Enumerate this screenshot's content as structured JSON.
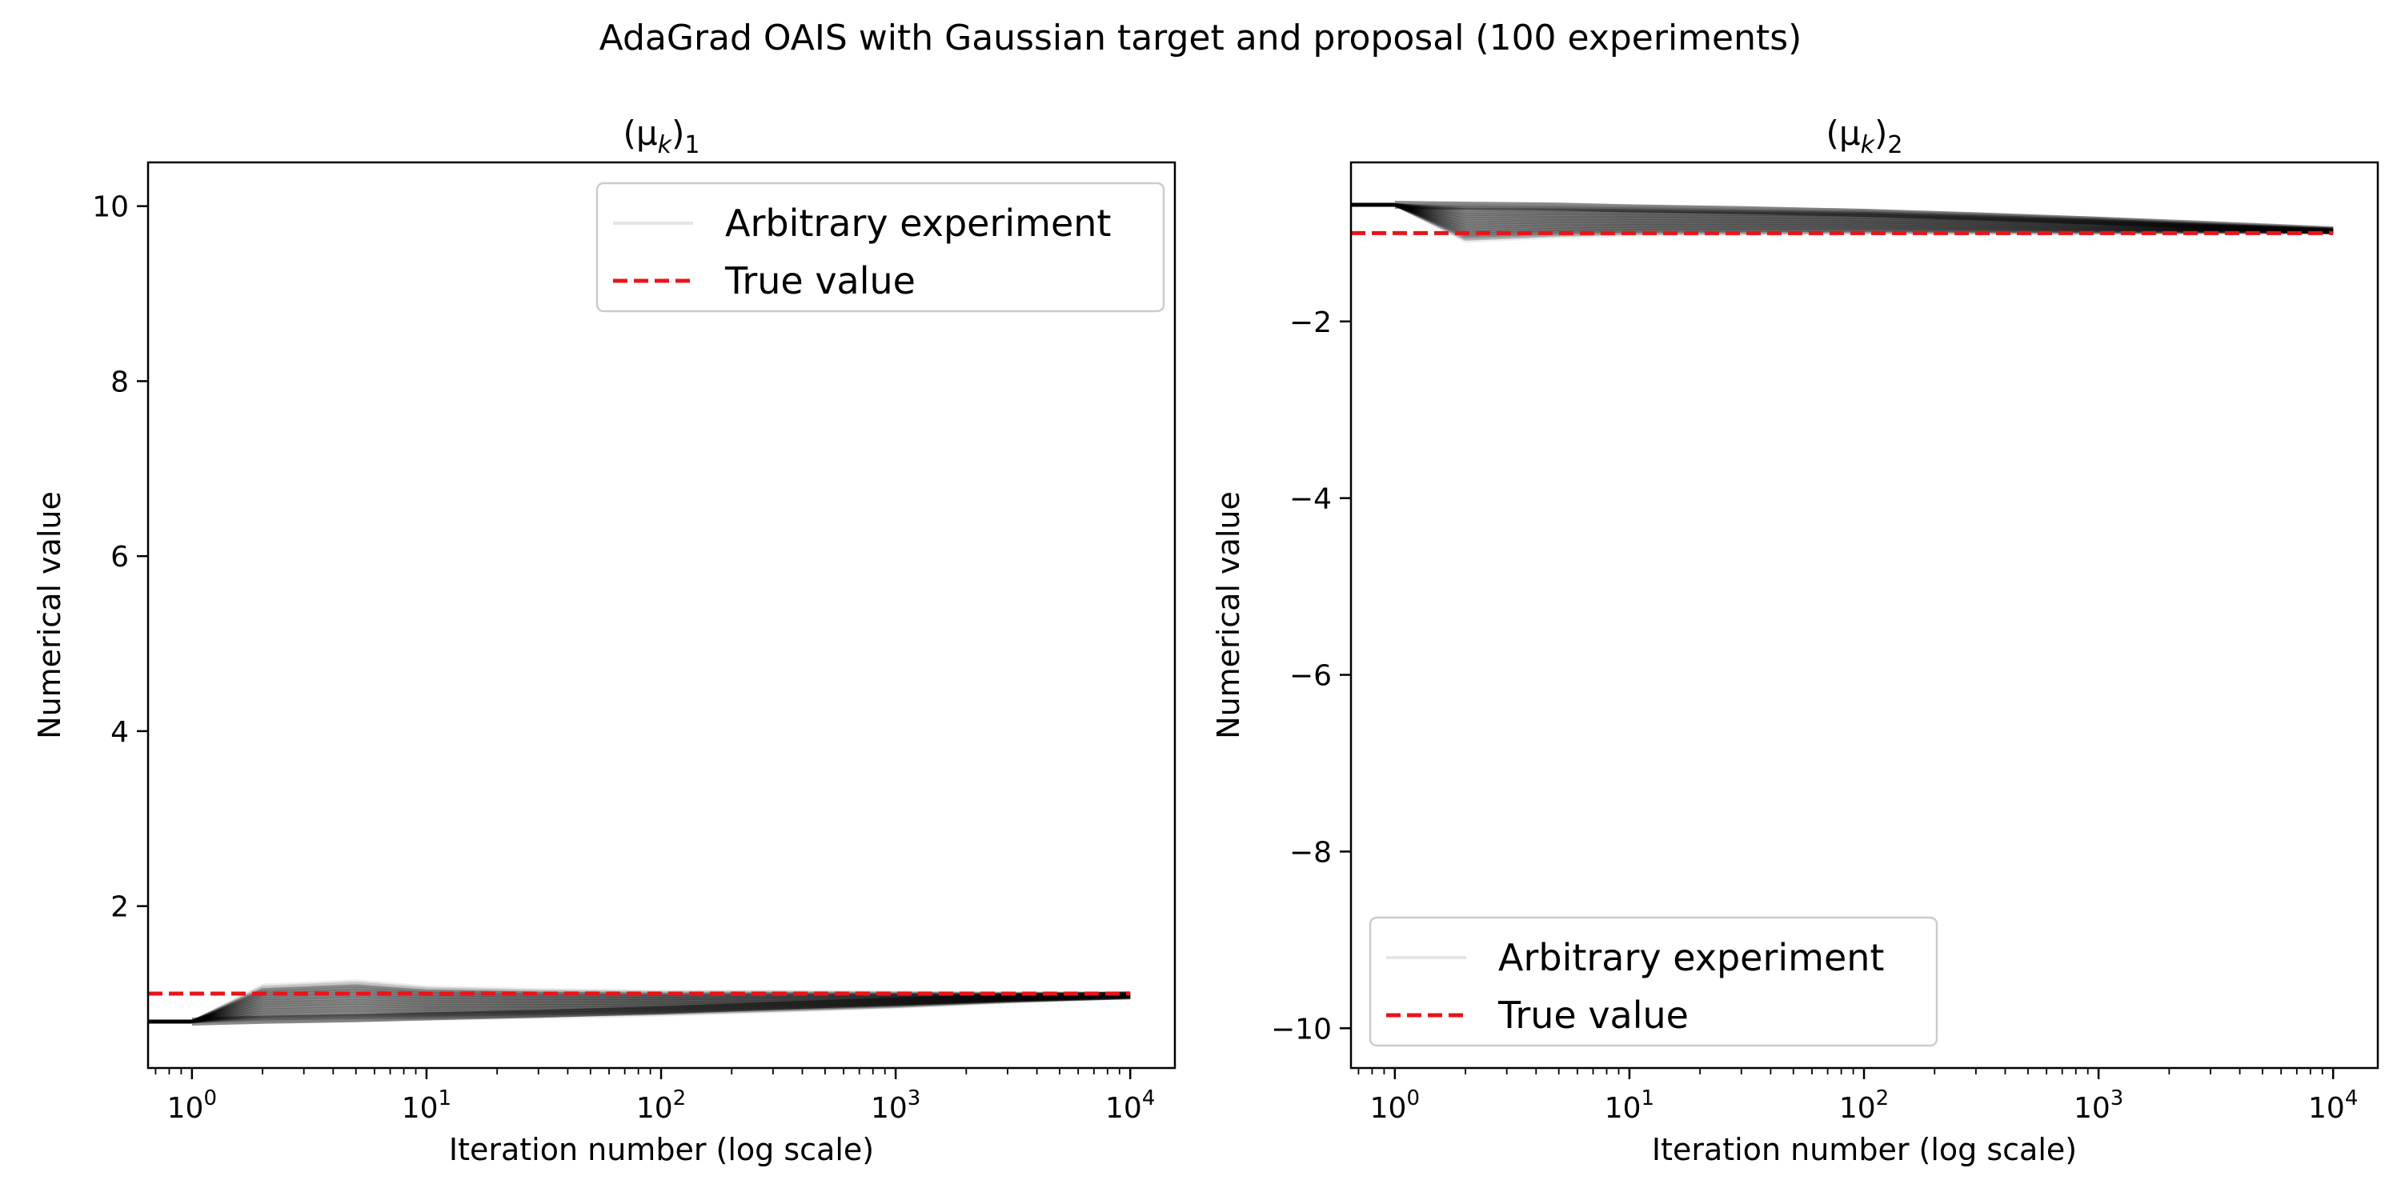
{
  "figure_title": "AdaGrad OAIS with Gaussian target and proposal (100 experiments)",
  "colors": {
    "experiment": "#000000",
    "true_value": "#e8141a",
    "frame": "#000000",
    "legend_border": "#cccccc"
  },
  "chart_data": [
    {
      "type": "line",
      "title": "(μk)1",
      "title_main": "(μ",
      "title_sub_k": "k",
      "title_close": ")",
      "title_sub_index": "1",
      "xlabel": "Iteration number (log scale)",
      "ylabel": "Numerical value",
      "xscale": "log",
      "xlim": [
        0.65,
        15500
      ],
      "ylim": [
        0.15,
        10.5
      ],
      "xticks": [
        1,
        10,
        100,
        1000,
        10000
      ],
      "xtick_labels": [
        {
          "base": "10",
          "exp": "0"
        },
        {
          "base": "10",
          "exp": "1"
        },
        {
          "base": "10",
          "exp": "2"
        },
        {
          "base": "10",
          "exp": "3"
        },
        {
          "base": "10",
          "exp": "4"
        }
      ],
      "yticks": [
        2,
        4,
        6,
        8,
        10
      ],
      "ytick_labels": [
        "2",
        "4",
        "6",
        "8",
        "10"
      ],
      "legend_loc": "upper right",
      "legend": [
        "Arbitrary experiment",
        "True value"
      ],
      "grid": false,
      "true_value": 1.0,
      "experiments": {
        "count": 100,
        "x": [
          1,
          2,
          5,
          10,
          30,
          100,
          300,
          1000,
          3000,
          10000
        ],
        "envelope_low": [
          0.68,
          0.68,
          0.69,
          0.7,
          0.72,
          0.75,
          0.79,
          0.84,
          0.9,
          0.95
        ],
        "envelope_high": [
          0.68,
          1.1,
          1.15,
          1.08,
          1.05,
          1.03,
          1.03,
          1.02,
          1.01,
          1.01
        ],
        "highlight": [
          0.68,
          0.7,
          0.72,
          0.74,
          0.77,
          0.81,
          0.86,
          0.91,
          0.95,
          0.98
        ]
      }
    },
    {
      "type": "line",
      "title": "(μk)2",
      "title_main": "(μ",
      "title_sub_k": "k",
      "title_close": ")",
      "title_sub_index": "2",
      "xlabel": "Iteration number (log scale)",
      "ylabel": "Numerical value",
      "xscale": "log",
      "xlim": [
        0.65,
        15500
      ],
      "ylim": [
        -10.45,
        -0.2
      ],
      "xticks": [
        1,
        10,
        100,
        1000,
        10000
      ],
      "xtick_labels": [
        {
          "base": "10",
          "exp": "0"
        },
        {
          "base": "10",
          "exp": "1"
        },
        {
          "base": "10",
          "exp": "2"
        },
        {
          "base": "10",
          "exp": "3"
        },
        {
          "base": "10",
          "exp": "4"
        }
      ],
      "yticks": [
        -10,
        -8,
        -6,
        -4,
        -2
      ],
      "ytick_labels": [
        "−10",
        "−8",
        "−6",
        "−4",
        "−2"
      ],
      "legend_loc": "lower left",
      "legend": [
        "Arbitrary experiment",
        "True value"
      ],
      "grid": false,
      "true_value": -1.0,
      "experiments": {
        "count": 100,
        "x": [
          1,
          2,
          5,
          10,
          30,
          100,
          300,
          1000,
          3000,
          10000
        ],
        "envelope_low": [
          -0.68,
          -1.1,
          -1.05,
          -1.03,
          -1.02,
          -1.01,
          -1.01,
          -1.01,
          -1.0,
          -1.0
        ],
        "envelope_high": [
          -0.68,
          -0.68,
          -0.69,
          -0.7,
          -0.72,
          -0.74,
          -0.78,
          -0.83,
          -0.89,
          -0.95
        ],
        "highlight": [
          -0.68,
          -0.69,
          -0.7,
          -0.72,
          -0.74,
          -0.77,
          -0.81,
          -0.86,
          -0.91,
          -0.97
        ]
      }
    }
  ]
}
